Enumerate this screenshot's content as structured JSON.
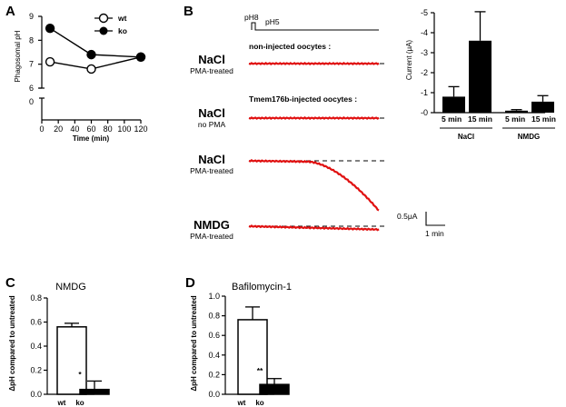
{
  "panel_labels": {
    "A": "A",
    "B": "B",
    "C": "C",
    "D": "D"
  },
  "chart_data": [
    {
      "id": "A",
      "type": "line",
      "x": [
        10,
        60,
        120
      ],
      "series": [
        {
          "name": "wt",
          "values": [
            7.1,
            6.8,
            7.3
          ],
          "marker": "open-circle"
        },
        {
          "name": "ko",
          "values": [
            8.5,
            7.4,
            7.3
          ],
          "marker": "filled-circle"
        }
      ],
      "xlabel": "Time (min)",
      "ylabel": "Phagosomal pH",
      "xlim": [
        0,
        120
      ],
      "ylim": [
        6,
        9
      ],
      "xticks": [
        "0",
        "20",
        "40",
        "60",
        "80",
        "100",
        "120"
      ],
      "yticks": [
        "6",
        "7",
        "8",
        "9"
      ],
      "y_axis_break_value": "0",
      "legend_position": "top-right"
    },
    {
      "id": "B-traces",
      "type": "line",
      "solution_labels": {
        "ph8": "pH8",
        "ph5": "pH5"
      },
      "rows": [
        {
          "condition": "NaCl",
          "sub": "PMA-treated",
          "header": "non-injected oocytes :",
          "drop_fraction": 0.0
        },
        {
          "condition": "NaCl",
          "sub": "no PMA",
          "header": "Tmem176b-injected oocytes :",
          "drop_fraction": 0.0
        },
        {
          "condition": "NaCl",
          "sub": "PMA-treated",
          "header": "",
          "drop_fraction": 1.0
        },
        {
          "condition": "NMDG",
          "sub": "PMA-treated",
          "header": "",
          "drop_fraction": 0.24
        }
      ],
      "scalebar_current": "0.5μA",
      "scalebar_time": "1 min",
      "trace_color": "#e01010"
    },
    {
      "id": "B-bars",
      "type": "bar",
      "categories": [
        "5 min",
        "15 min",
        "5 min",
        "15 min"
      ],
      "groups": [
        "NaCl",
        "NMDG"
      ],
      "values": [
        0.8,
        3.6,
        0.1,
        0.55
      ],
      "errors": [
        0.5,
        1.45,
        0.05,
        0.3
      ],
      "ylabel": "Current (μA)",
      "ylim": [
        0,
        5
      ],
      "yticks": [
        "-0",
        "-1",
        "-2",
        "-3",
        "-4",
        "-5"
      ]
    },
    {
      "id": "C",
      "type": "bar",
      "title": "NMDG",
      "categories": [
        "wt",
        "ko"
      ],
      "values": [
        0.56,
        0.04
      ],
      "errors": [
        0.03,
        0.07
      ],
      "fill": [
        "#ffffff",
        "#000000"
      ],
      "ylabel": "ΔpH compared to untreated",
      "ylim": [
        0,
        0.8
      ],
      "yticks": [
        "0.0",
        "0.2",
        "0.4",
        "0.6",
        "0.8"
      ],
      "significance": "*"
    },
    {
      "id": "D",
      "type": "bar",
      "title": "Bafilomycin-1",
      "categories": [
        "wt",
        "ko"
      ],
      "values": [
        0.76,
        0.1
      ],
      "errors": [
        0.13,
        0.06
      ],
      "fill": [
        "#ffffff",
        "#000000"
      ],
      "ylabel": "ΔpH compared to untreated",
      "ylim": [
        0,
        1.0
      ],
      "yticks": [
        "0.0",
        "0.2",
        "0.4",
        "0.6",
        "0.8",
        "1.0"
      ],
      "significance": "**"
    }
  ]
}
